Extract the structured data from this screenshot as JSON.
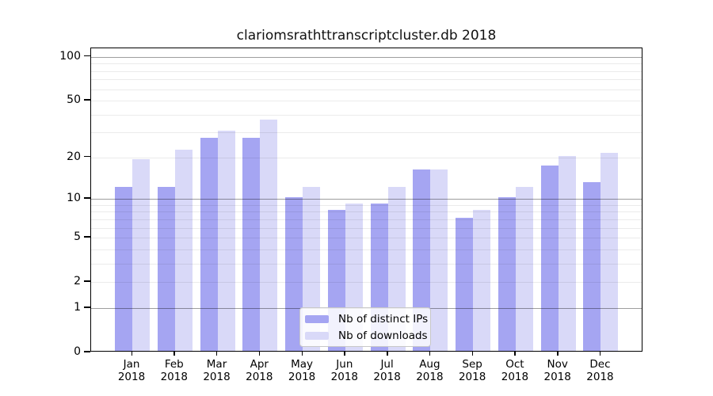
{
  "chart_data": {
    "type": "bar",
    "title": "clariomsrathttranscriptcluster.db 2018",
    "year_label": "2018",
    "categories": [
      "Jan",
      "Feb",
      "Mar",
      "Apr",
      "May",
      "Jun",
      "Jul",
      "Aug",
      "Sep",
      "Oct",
      "Nov",
      "Dec"
    ],
    "series": [
      {
        "name": "Nb of distinct IPs",
        "color": "#a5a5f2",
        "values": [
          12,
          12,
          27,
          27,
          10,
          8,
          9,
          16,
          7,
          10,
          17,
          13
        ]
      },
      {
        "name": "Nb of downloads",
        "color": "#d9d9f8",
        "values": [
          19,
          22,
          30,
          36,
          12,
          9,
          12,
          16,
          8,
          12,
          20,
          21
        ]
      }
    ],
    "y_axis": {
      "scale": "log10(value+1)",
      "tick_labels": [
        100,
        50,
        20,
        10,
        5,
        2,
        1,
        0
      ],
      "range_top": 100
    },
    "grid": true,
    "legend_position": "bottom-center"
  },
  "colors": {
    "background": "#ffffff",
    "axis": "#000000",
    "grid_major": "rgba(0,0,0,0.38)",
    "grid_minor": "rgba(0,0,0,0.08)",
    "legend_border": "#c8c8c8"
  }
}
